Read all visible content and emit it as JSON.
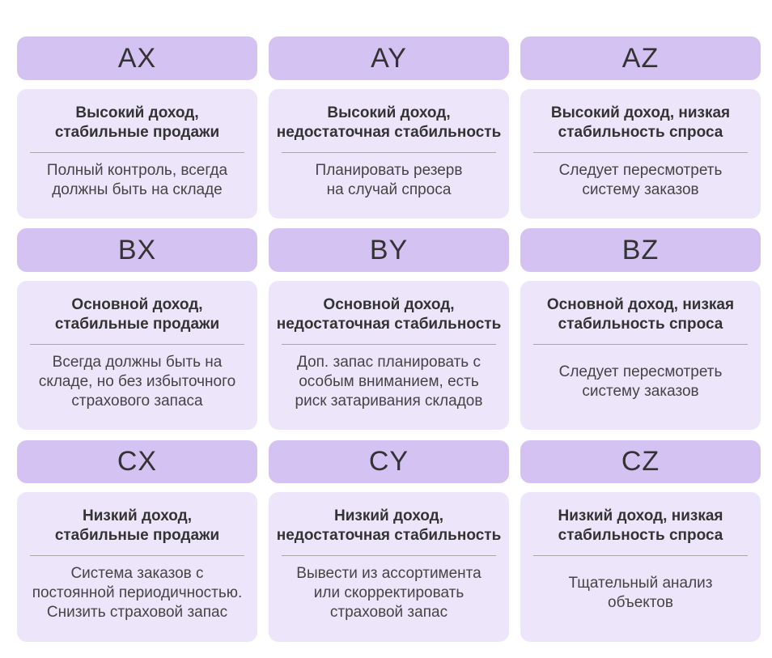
{
  "cells": [
    {
      "code": "AX",
      "title": "Высокий доход,\nстабильные продажи",
      "desc": "Полный контроль, всегда\nдолжны быть на складе"
    },
    {
      "code": "AY",
      "title": "Высокий доход,\nнедостаточная стабильность",
      "desc": "Планировать резерв\nна случай спроса"
    },
    {
      "code": "AZ",
      "title": "Высокий доход, низкая\nстабильность спроса",
      "desc": "Следует пересмотреть\nсистему заказов"
    },
    {
      "code": "BX",
      "title": "Основной доход,\nстабильные продажи",
      "desc": "Всегда должны быть на\nскладе, но без избыточного\nстрахового запаса"
    },
    {
      "code": "BY",
      "title": "Основной доход,\nнедостаточная стабильность",
      "desc": "Доп. запас планировать с\nособым вниманием, есть\nриск затаривания складов"
    },
    {
      "code": "BZ",
      "title": "Основной доход, низкая\nстабильность спроса",
      "desc": "Следует пересмотреть\nсистему заказов"
    },
    {
      "code": "CX",
      "title": "Низкий доход,\nстабильные продажи",
      "desc": "Система заказов с\nпостоянной периодичностью.\nСнизить страховой запас"
    },
    {
      "code": "CY",
      "title": "Низкий доход,\nнедостаточная стабильность",
      "desc": "Вывести из ассортимента\nили скорректировать\nстраховой запас"
    },
    {
      "code": "CZ",
      "title": "Низкий доход, низкая\nстабильность спроса",
      "desc": "Тщательный анализ\nобъектов"
    }
  ]
}
